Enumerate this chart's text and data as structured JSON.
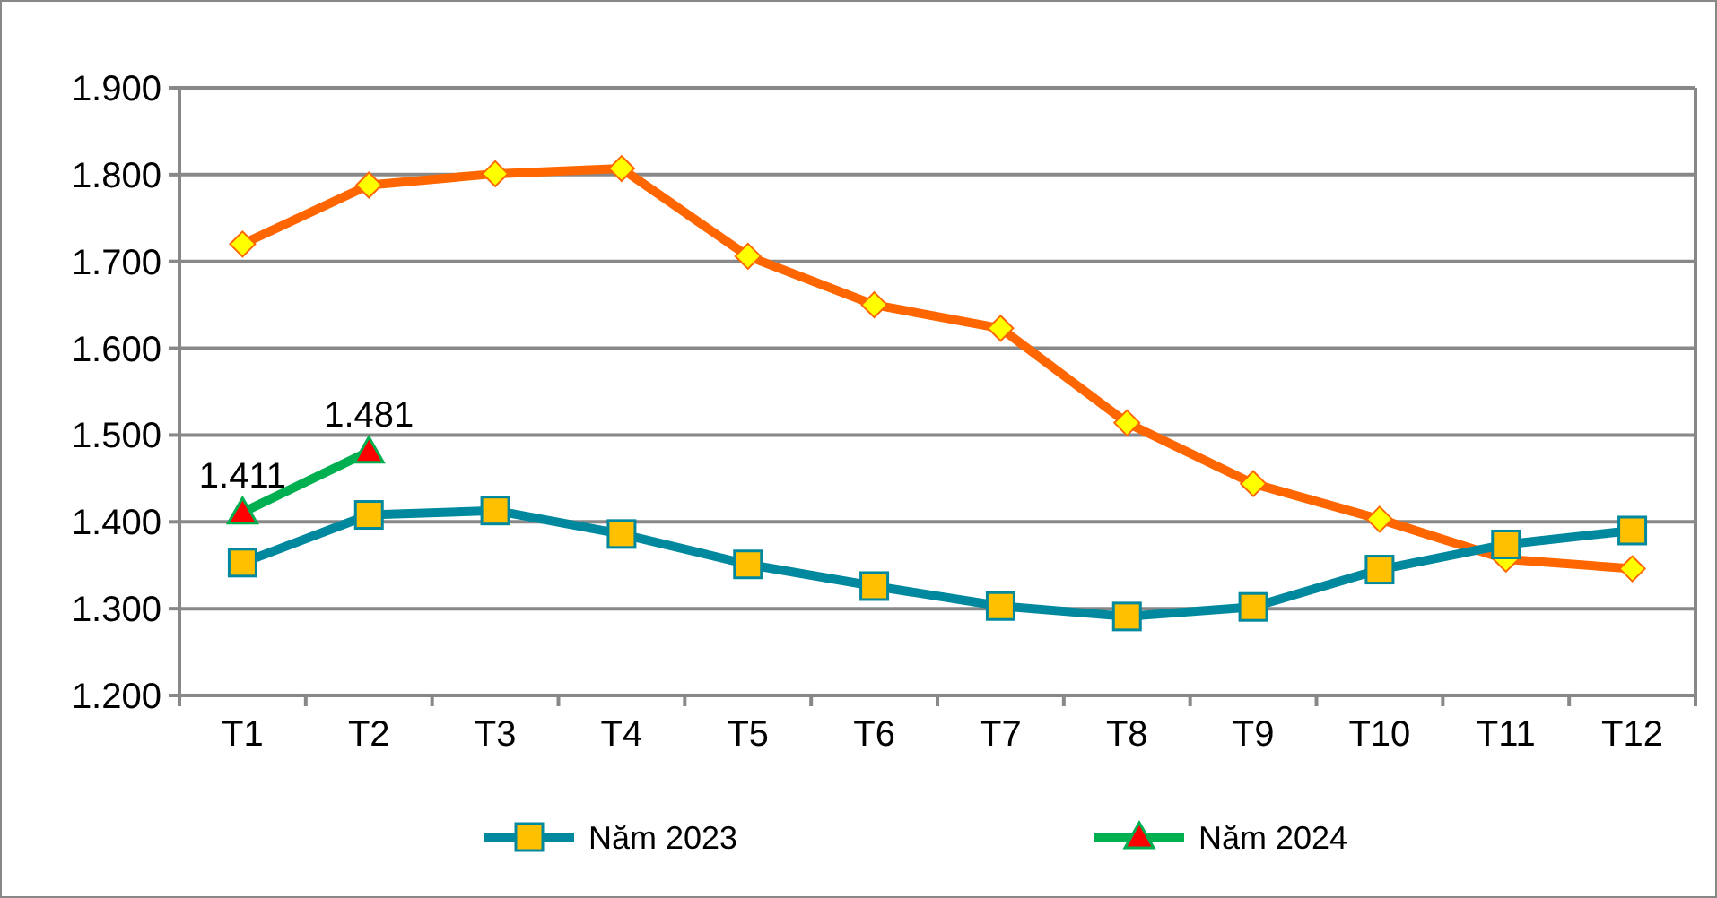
{
  "chart_data": {
    "type": "line",
    "categories": [
      "T1",
      "T2",
      "T3",
      "T4",
      "T5",
      "T6",
      "T7",
      "T8",
      "T9",
      "T10",
      "T11",
      "T12"
    ],
    "series": [
      {
        "color": "#ff6600",
        "marker": "diamond",
        "values": [
          1720,
          1788,
          1801,
          1807,
          1706,
          1650,
          1623,
          1514,
          1444,
          1403,
          1357,
          1346
        ]
      },
      {
        "name": "Năm 2023",
        "color": "#00899e",
        "marker": "square",
        "values": [
          1353,
          1408,
          1413,
          1386,
          1351,
          1326,
          1303,
          1291,
          1302,
          1345,
          1374,
          1390
        ]
      },
      {
        "name": "Năm 2024",
        "color": "#00b050",
        "marker": "triangle",
        "values": [
          1411,
          1481,
          null,
          null,
          null,
          null,
          null,
          null,
          null,
          null,
          null,
          null
        ],
        "value_labels": [
          "1.411",
          "1.481",
          null,
          null,
          null,
          null,
          null,
          null,
          null,
          null,
          null,
          null
        ]
      }
    ],
    "ylim": [
      1200,
      1900
    ],
    "yticks": [
      {
        "value": 1200,
        "label": "1.200"
      },
      {
        "value": 1300,
        "label": "1.300"
      },
      {
        "value": 1400,
        "label": "1.400"
      },
      {
        "value": 1500,
        "label": "1.500"
      },
      {
        "value": 1600,
        "label": "1.600"
      },
      {
        "value": 1700,
        "label": "1.700"
      },
      {
        "value": 1800,
        "label": "1.800"
      },
      {
        "value": 1900,
        "label": "1.900"
      }
    ],
    "grid": "y",
    "legend": "bottom",
    "line_style": "solid"
  }
}
